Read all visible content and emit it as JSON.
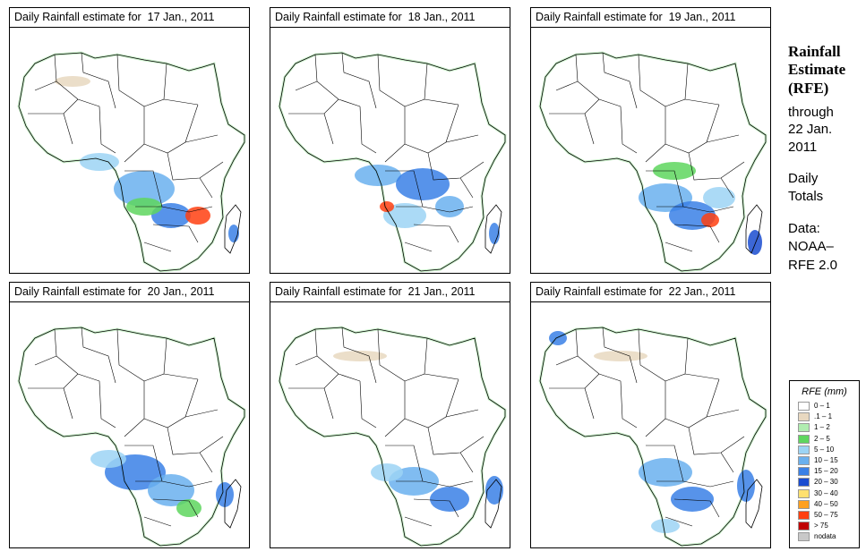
{
  "panels": [
    {
      "title": "Daily Rainfall estimate for  17 Jan., 2011"
    },
    {
      "title": "Daily Rainfall estimate for  18 Jan., 2011"
    },
    {
      "title": "Daily Rainfall estimate for  19 Jan., 2011"
    },
    {
      "title": "Daily Rainfall estimate for  20 Jan., 2011"
    },
    {
      "title": "Daily Rainfall estimate for  21 Jan., 2011"
    },
    {
      "title": "Daily Rainfall estimate for  22 Jan., 2011"
    }
  ],
  "sidebar": {
    "title_line1": "Rainfall",
    "title_line2": "Estimate",
    "title_line3": "(RFE)",
    "through": "through",
    "date_line1": "22 Jan.",
    "date_line2": "2011",
    "daily_line1": "Daily",
    "daily_line2": "Totals",
    "data_label": "Data:",
    "source_line1": "NOAA–",
    "source_line2": "RFE 2.0"
  },
  "legend": {
    "title": "RFE (mm)",
    "items": [
      {
        "label": "0 – 1",
        "color": "#ffffff"
      },
      {
        "label": ".1 – 1",
        "color": "#e8d8c0"
      },
      {
        "label": "1 – 2",
        "color": "#b0ecb0"
      },
      {
        "label": "2 – 5",
        "color": "#5ed65e"
      },
      {
        "label": "5 – 10",
        "color": "#9cd4f4"
      },
      {
        "label": "10 – 15",
        "color": "#6ab0ee"
      },
      {
        "label": "15 – 20",
        "color": "#3a80e6"
      },
      {
        "label": "20 – 30",
        "color": "#1a4cd0"
      },
      {
        "label": "30 – 40",
        "color": "#ffe070"
      },
      {
        "label": "40 – 50",
        "color": "#ffa020"
      },
      {
        "label": "50 – 75",
        "color": "#ff4010"
      },
      {
        "label": "> 75",
        "color": "#c00000"
      },
      {
        "label": "nodata",
        "color": "#c8c8c8"
      }
    ]
  }
}
